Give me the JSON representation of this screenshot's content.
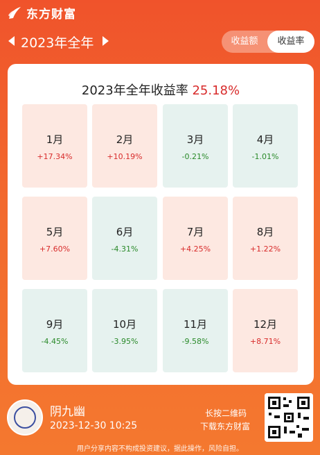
{
  "brand": {
    "name": "东方财富",
    "logo_icon": "dongfang-leaf-logo-icon"
  },
  "period": {
    "label": "2023年全年",
    "prev_icon": "triangle-left-icon",
    "next_icon": "triangle-right-icon"
  },
  "toggle": {
    "options": [
      "收益额",
      "收益率"
    ],
    "selected": "收益率"
  },
  "summary": {
    "title_prefix": "2023年全年收益率",
    "value": "25.18%"
  },
  "months": [
    {
      "label": "1月",
      "value": "+17.34%",
      "trend": "pos"
    },
    {
      "label": "2月",
      "value": "+10.19%",
      "trend": "pos"
    },
    {
      "label": "3月",
      "value": "-0.21%",
      "trend": "neg"
    },
    {
      "label": "4月",
      "value": "-1.01%",
      "trend": "neg"
    },
    {
      "label": "5月",
      "value": "+7.60%",
      "trend": "pos"
    },
    {
      "label": "6月",
      "value": "-4.31%",
      "trend": "neg"
    },
    {
      "label": "7月",
      "value": "+4.25%",
      "trend": "pos"
    },
    {
      "label": "8月",
      "value": "+1.22%",
      "trend": "pos"
    },
    {
      "label": "9月",
      "value": "-4.45%",
      "trend": "neg"
    },
    {
      "label": "10月",
      "value": "-3.95%",
      "trend": "neg"
    },
    {
      "label": "11月",
      "value": "-9.58%",
      "trend": "neg"
    },
    {
      "label": "12月",
      "value": "+8.71%",
      "trend": "pos"
    }
  ],
  "user": {
    "name": "阴九幽",
    "timestamp": "2023-12-30 10:25",
    "avatar_icon": "user-avatar-icon"
  },
  "qr": {
    "hint_line1": "长按二维码",
    "hint_line2": "下载东方财富",
    "icon": "qr-code-icon"
  },
  "disclaimer": "用户分享内容不构成投资建议，据此操作，风险自担。",
  "colors": {
    "brand_orange": "#f0532b",
    "gain_red": "#d82b2b",
    "loss_green": "#2a8a2a",
    "gain_bg": "#fde8e1",
    "loss_bg": "#e6f2ef"
  }
}
